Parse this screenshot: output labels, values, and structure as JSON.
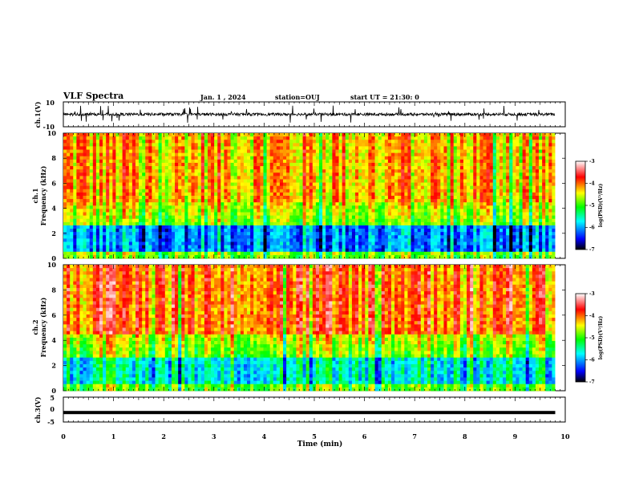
{
  "header": {
    "title": "VLF Spectra",
    "date": "Jan. 1 , 2024",
    "station": "station=OUJ",
    "start": "start UT = 21:30: 0"
  },
  "chart_data": [
    {
      "type": "line",
      "name": "waveform-ch1",
      "ylabel": "ch.1(V)",
      "ylim": [
        -10,
        10
      ],
      "yticks": [
        "10",
        "-10"
      ],
      "xlim": [
        0,
        10
      ],
      "note_value": "mostly near 0 with frequent spikes to about ±7 V"
    },
    {
      "type": "heatmap",
      "name": "spectrogram-ch1",
      "ylabel": [
        "ch.1",
        "Frequency (kHz)"
      ],
      "ylim": [
        0,
        10
      ],
      "yticks": [
        "0",
        "2",
        "4",
        "6",
        "8",
        "10"
      ],
      "xlim": [
        0,
        9.8
      ],
      "colorbar": {
        "label": "log(PSD)(V²/Hz)",
        "ticks": [
          "-3",
          "-4",
          "-5",
          "-6",
          "-7"
        ],
        "range": [
          -7,
          -3
        ]
      }
    },
    {
      "type": "heatmap",
      "name": "spectrogram-ch2",
      "ylabel": [
        "ch.2",
        "Frequency (kHz)"
      ],
      "ylim": [
        0,
        10
      ],
      "yticks": [
        "0",
        "2",
        "4",
        "6",
        "8",
        "10"
      ],
      "xlim": [
        0,
        9.8
      ],
      "colorbar": {
        "label": "log(PSD)(V²/Hz)",
        "ticks": [
          "-3",
          "-4",
          "-5",
          "-6",
          "-7"
        ],
        "range": [
          -7,
          -3
        ]
      }
    },
    {
      "type": "line",
      "name": "waveform-ch3",
      "ylabel": "ch.3(V)",
      "ylim": [
        -5,
        5
      ],
      "yticks": [
        "5",
        "0",
        "-5"
      ],
      "xlim": [
        0,
        10
      ],
      "constant_value": -1.2
    }
  ],
  "xaxis": {
    "label": "Time (min)",
    "ticks": [
      "0",
      "1",
      "2",
      "3",
      "4",
      "5",
      "6",
      "7",
      "8",
      "9",
      "10"
    ]
  },
  "colors": {
    "colormap": [
      "#000000",
      "#0000ff",
      "#00ffff",
      "#00ff00",
      "#ffff00",
      "#ff0000",
      "#ffffff"
    ]
  }
}
